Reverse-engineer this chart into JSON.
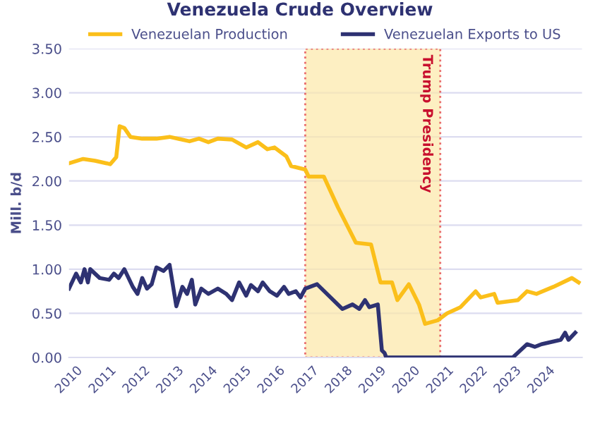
{
  "chart_data": {
    "type": "line",
    "title": "Venezuela Crude Overview",
    "ylabel": "Mill. b/d",
    "series": [
      {
        "name": "Venezuelan Production",
        "color": "#fbbf1a",
        "x": [
          2010.0,
          2010.42,
          2010.77,
          2011.12,
          2011.22,
          2011.4,
          2011.5,
          2011.64,
          2011.82,
          2012.17,
          2012.59,
          2012.98,
          2013.57,
          2013.85,
          2014.13,
          2014.41,
          2014.83,
          2015.25,
          2015.6,
          2015.88,
          2016.09,
          2016.44,
          2016.58,
          2017.0,
          2017.1,
          2017.55,
          2017.97,
          2018.5,
          2018.95,
          2019.23,
          2019.57,
          2019.73,
          2020.07,
          2020.37,
          2020.55,
          2020.92,
          2021.2,
          2021.6,
          2022.05,
          2022.2,
          2022.6,
          2022.7,
          2023.3,
          2023.57,
          2023.85,
          2024.35,
          2024.9,
          2025.1
        ],
        "values": [
          2.2,
          2.25,
          2.23,
          2.2,
          2.19,
          2.27,
          2.62,
          2.6,
          2.5,
          2.48,
          2.48,
          2.5,
          2.45,
          2.48,
          2.44,
          2.48,
          2.47,
          2.38,
          2.44,
          2.36,
          2.38,
          2.28,
          2.17,
          2.13,
          2.05,
          2.05,
          1.7,
          1.3,
          1.28,
          0.85,
          0.85,
          0.65,
          0.83,
          0.6,
          0.38,
          0.42,
          0.5,
          0.57,
          0.75,
          0.68,
          0.72,
          0.62,
          0.65,
          0.75,
          0.72,
          0.8,
          0.9,
          0.85
        ]
      },
      {
        "name": "Venezuelan Exports to US",
        "color": "#2e3272",
        "x": [
          2010.0,
          2010.21,
          2010.35,
          2010.46,
          2010.56,
          2010.63,
          2010.91,
          2011.19,
          2011.33,
          2011.47,
          2011.64,
          2011.89,
          2012.03,
          2012.17,
          2012.31,
          2012.45,
          2012.59,
          2012.8,
          2012.98,
          2013.18,
          2013.36,
          2013.5,
          2013.64,
          2013.74,
          2013.92,
          2014.13,
          2014.41,
          2014.66,
          2014.83,
          2015.04,
          2015.25,
          2015.39,
          2015.6,
          2015.74,
          2015.95,
          2016.16,
          2016.37,
          2016.51,
          2016.72,
          2016.86,
          2017.0,
          2017.35,
          2018.1,
          2018.4,
          2018.6,
          2018.77,
          2018.9,
          2019.15,
          2019.27,
          2019.35,
          2019.4,
          2023.15,
          2023.57,
          2023.8,
          2024.0,
          2024.57,
          2024.7,
          2024.8,
          2025.0
        ],
        "values": [
          0.78,
          0.95,
          0.85,
          1.0,
          0.85,
          1.0,
          0.9,
          0.88,
          0.95,
          0.9,
          1.0,
          0.8,
          0.72,
          0.9,
          0.78,
          0.83,
          1.02,
          0.98,
          1.05,
          0.58,
          0.8,
          0.72,
          0.88,
          0.6,
          0.78,
          0.72,
          0.78,
          0.72,
          0.65,
          0.85,
          0.7,
          0.82,
          0.75,
          0.85,
          0.75,
          0.7,
          0.8,
          0.72,
          0.75,
          0.68,
          0.78,
          0.83,
          0.55,
          0.6,
          0.55,
          0.65,
          0.57,
          0.6,
          0.08,
          0.05,
          0.0,
          0.0,
          0.15,
          0.12,
          0.15,
          0.2,
          0.28,
          0.2,
          0.28
        ]
      }
    ],
    "xlim": [
      2010,
      2025.2
    ],
    "xticks": [
      2010,
      2011,
      2012,
      2013,
      2014,
      2015,
      2016,
      2017,
      2018,
      2019,
      2020,
      2021,
      2022,
      2023,
      2024
    ],
    "ylim": [
      0,
      3.5
    ],
    "yticks": [
      {
        "value": 0,
        "label": "0.00"
      },
      {
        "value": 0.5,
        "label": "0.50"
      },
      {
        "value": 1,
        "label": "1.00"
      },
      {
        "value": 1.5,
        "label": "1.50"
      },
      {
        "value": 2,
        "label": "2.00"
      },
      {
        "value": 2.5,
        "label": "2.50"
      },
      {
        "value": 3,
        "label": "3.00"
      },
      {
        "value": 3.5,
        "label": "3.50"
      }
    ],
    "bands": [
      {
        "axis": "x",
        "from": 2017,
        "to": 2021,
        "label": "Trump Presidency",
        "color": "#fde8a8"
      }
    ],
    "grid": "y",
    "legend": "top",
    "marker": "none",
    "line_style": "solid"
  }
}
